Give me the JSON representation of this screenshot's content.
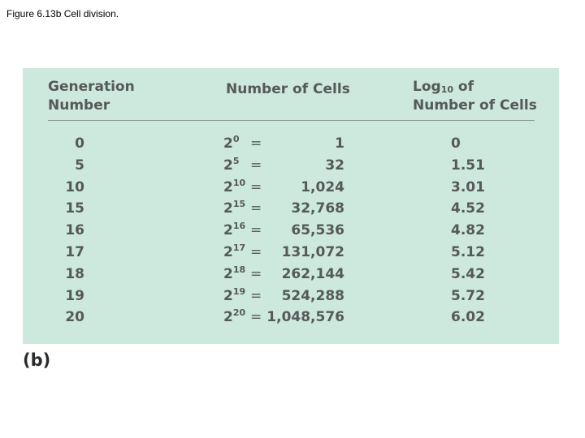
{
  "caption": "Figure 6.13b Cell division.",
  "table": {
    "headers": {
      "generation_line1": "Generation",
      "generation_line2": "Number",
      "cells": "Number of Cells",
      "log_prefix": "Log",
      "log_base": "10",
      "log_suffix": " of",
      "log_line2": "Number of Cells"
    },
    "power_base": "2",
    "equals_sign": "=",
    "rows": [
      {
        "generation": "0",
        "exponent": "0",
        "cells": "1",
        "log": "0"
      },
      {
        "generation": "5",
        "exponent": "5",
        "cells": "32",
        "log": "1.51"
      },
      {
        "generation": "10",
        "exponent": "10",
        "cells": "1,024",
        "log": "3.01"
      },
      {
        "generation": "15",
        "exponent": "15",
        "cells": "32,768",
        "log": "4.52"
      },
      {
        "generation": "16",
        "exponent": "16",
        "cells": "65,536",
        "log": "4.82"
      },
      {
        "generation": "17",
        "exponent": "17",
        "cells": "131,072",
        "log": "5.12"
      },
      {
        "generation": "18",
        "exponent": "18",
        "cells": "262,144",
        "log": "5.42"
      },
      {
        "generation": "19",
        "exponent": "19",
        "cells": "524,288",
        "log": "5.72"
      },
      {
        "generation": "20",
        "exponent": "20",
        "cells": "1,048,576",
        "log": "6.02"
      }
    ]
  },
  "panel_label": "(b)",
  "colors": {
    "panel_background": "#cde8dc",
    "table_text": "#55595a",
    "rule": "#8c9c96"
  }
}
